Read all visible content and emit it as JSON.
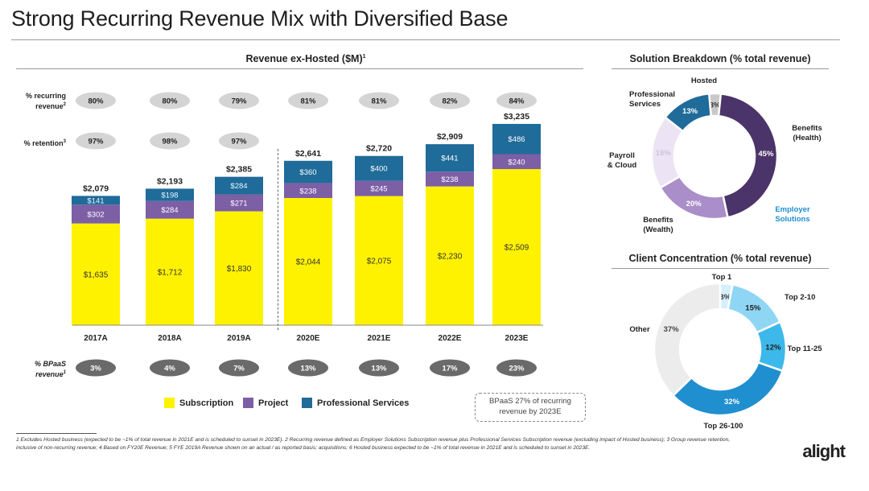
{
  "page": {
    "title": "Strong Recurring Revenue Mix with Diversified Base",
    "logo": "alight",
    "row_labels": {
      "recurring": "% recurring revenue",
      "retention": "% retention",
      "bpaas": "% BPaaS revenue"
    },
    "note_box": "BPaaS 27% of recurring revenue by 2023E",
    "footnotes": "1 Excludes Hosted business (expected to be ~1% of total revenue in 2021E and is scheduled to sunset in 2023E). 2 Recurring revenue defined as Employer Solutions Subscription revenue plus Professional Services Subscription revenue (excluding impact of Hosted business); 3 Group revenue retention, inclusive of non-recurring revenue; 4 Based on FY20E Revenue; 5 FYE 2019A Revenue shown on an actual / as reported basis; acquisitions; 6 Hosted business expected to be ~1% of total revenue in 2021E and is scheduled to sunset in 2023E."
  },
  "chart_data": [
    {
      "type": "bar",
      "title": "Revenue ex-Hosted ($M)",
      "categories": [
        "2017A",
        "2018A",
        "2019A",
        "2020E",
        "2021E",
        "2022E",
        "2023E"
      ],
      "series": [
        {
          "name": "Subscription",
          "color": "#fff200",
          "values": [
            1635,
            1712,
            1830,
            2044,
            2075,
            2230,
            2509
          ],
          "labels": [
            "$1,635",
            "$1,712",
            "$1,830",
            "$2,044",
            "$2,075",
            "$2,230",
            "$2,509"
          ]
        },
        {
          "name": "Project",
          "color": "#7d5fa6",
          "values": [
            302,
            284,
            271,
            238,
            245,
            238,
            240
          ],
          "labels": [
            "$302",
            "$284",
            "$271",
            "$238",
            "$245",
            "$238",
            "$240"
          ]
        },
        {
          "name": "Professional Services",
          "color": "#1f6b99",
          "values": [
            141,
            198,
            284,
            360,
            400,
            441,
            486
          ],
          "labels": [
            "$141",
            "$198",
            "$284",
            "$360",
            "$400",
            "$441",
            "$486"
          ]
        }
      ],
      "totals": [
        "$2,079",
        "$2,193",
        "$2,385",
        "$2,641",
        "$2,720",
        "$2,909",
        "$3,235"
      ],
      "recurring_pct": [
        "80%",
        "80%",
        "79%",
        "81%",
        "81%",
        "82%",
        "84%"
      ],
      "retention_pct": [
        "97%",
        "98%",
        "97%"
      ],
      "bpaas_pct": [
        "3%",
        "4%",
        "7%",
        "13%",
        "13%",
        "17%",
        "23%"
      ],
      "legend_position": "bottom"
    },
    {
      "type": "pie",
      "title": "Solution Breakdown (% total revenue)",
      "slices": [
        {
          "name": "Hosted",
          "value": 3,
          "label": "3%",
          "color": "#c9c9c9"
        },
        {
          "name": "Benefits (Health)",
          "value": 45,
          "label": "45%",
          "color": "#4b3469"
        },
        {
          "name": "Benefits (Wealth)",
          "value": 20,
          "label": "20%",
          "color": "#a98ec9"
        },
        {
          "name": "Payroll & Cloud",
          "value": 19,
          "label": "19%",
          "color": "#ece4f4"
        },
        {
          "name": "Professional Services",
          "value": 13,
          "label": "13%",
          "color": "#1f6b99"
        }
      ],
      "group_label": "Employer Solutions"
    },
    {
      "type": "pie",
      "title": "Client Concentration (% total revenue)",
      "slices": [
        {
          "name": "Top 1",
          "value": 3,
          "label": "3%",
          "color": "#d6f0fb"
        },
        {
          "name": "Top 2-10",
          "value": 15,
          "label": "15%",
          "color": "#8fd6f5"
        },
        {
          "name": "Top 11-25",
          "value": 12,
          "label": "12%",
          "color": "#3db8ea"
        },
        {
          "name": "Top 26-100",
          "value": 32,
          "label": "32%",
          "color": "#1f8fd0"
        },
        {
          "name": "Other",
          "value": 37,
          "label": "37%",
          "color": "#ececec"
        }
      ]
    }
  ]
}
